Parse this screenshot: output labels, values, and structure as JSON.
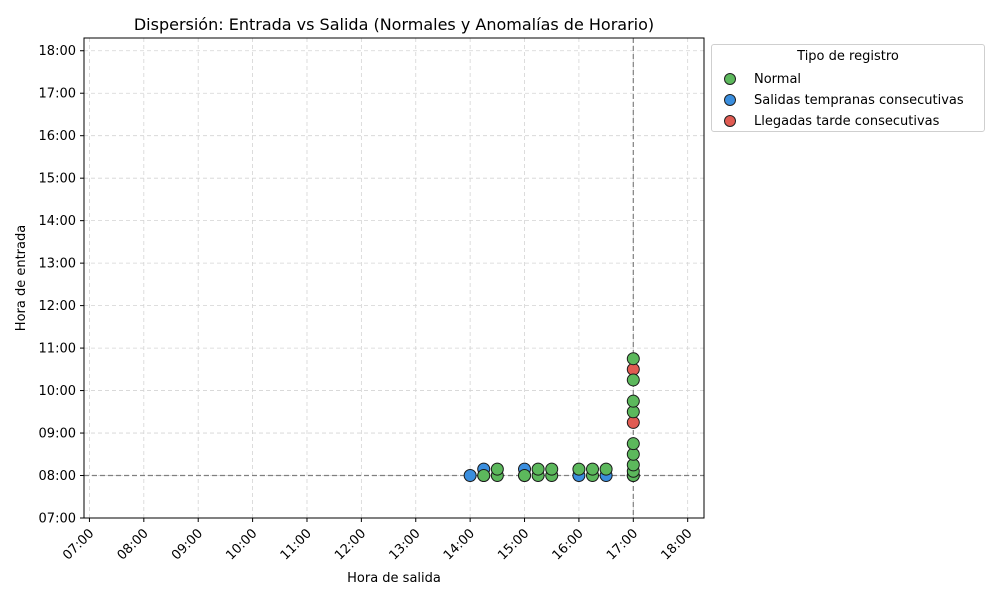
{
  "chart_data": {
    "type": "scatter",
    "title": "Dispersión: Entrada vs Salida (Normales y Anomalías de Horario)",
    "xlabel": "Hora de salida",
    "ylabel": "Hora de entrada",
    "xlim": [
      6.9,
      18.3
    ],
    "ylim": [
      7.0,
      18.3
    ],
    "xticks": [
      "07:00",
      "08:00",
      "09:00",
      "10:00",
      "11:00",
      "12:00",
      "13:00",
      "14:00",
      "15:00",
      "16:00",
      "17:00",
      "18:00"
    ],
    "yticks": [
      "07:00",
      "08:00",
      "09:00",
      "10:00",
      "11:00",
      "12:00",
      "13:00",
      "14:00",
      "15:00",
      "16:00",
      "17:00",
      "18:00"
    ],
    "grid": true,
    "reference_lines": {
      "x": 17.0,
      "y": 8.0
    },
    "legend": {
      "title": "Tipo de registro",
      "placement": "outside-top-right",
      "entries": [
        "Normal",
        "Salidas tempranas consecutivas",
        "Llegadas tarde consecutivas"
      ]
    },
    "series": [
      {
        "name": "Salidas tempranas consecutivas",
        "color": "#3a8ede",
        "points": [
          [
            14.0,
            8.0
          ],
          [
            14.25,
            8.0
          ],
          [
            14.25,
            8.15
          ],
          [
            15.0,
            8.0
          ],
          [
            15.0,
            8.15
          ],
          [
            16.0,
            8.0
          ],
          [
            16.5,
            8.0
          ],
          [
            17.0,
            8.0
          ]
        ]
      },
      {
        "name": "Llegadas tarde consecutivas",
        "color": "#e05b52",
        "points": [
          [
            17.0,
            9.25
          ],
          [
            17.0,
            10.5
          ]
        ]
      },
      {
        "name": "Normal",
        "color": "#5cb85c",
        "points": [
          [
            14.25,
            8.0
          ],
          [
            14.5,
            8.0
          ],
          [
            14.5,
            8.15
          ],
          [
            15.0,
            8.0
          ],
          [
            15.25,
            8.0
          ],
          [
            15.25,
            8.15
          ],
          [
            15.5,
            8.0
          ],
          [
            15.5,
            8.15
          ],
          [
            16.0,
            8.15
          ],
          [
            16.25,
            8.0
          ],
          [
            16.25,
            8.15
          ],
          [
            16.5,
            8.15
          ],
          [
            17.0,
            8.0
          ],
          [
            17.0,
            8.1
          ],
          [
            17.0,
            8.25
          ],
          [
            17.0,
            8.5
          ],
          [
            17.0,
            8.75
          ],
          [
            17.0,
            9.5
          ],
          [
            17.0,
            9.75
          ],
          [
            17.0,
            10.25
          ],
          [
            17.0,
            10.75
          ]
        ]
      }
    ]
  }
}
